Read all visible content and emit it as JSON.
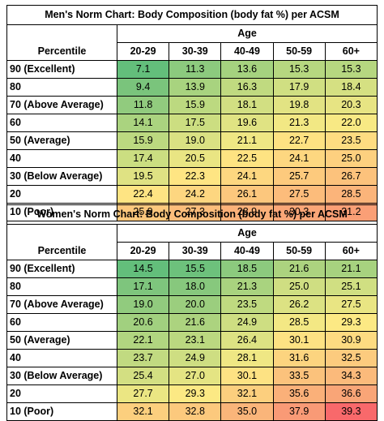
{
  "charts": [
    {
      "id": "men",
      "title": "Men's Norm Chart: Body Composition (body fat %) per ACSM",
      "age_label": "Age",
      "percentile_label": "Percentile",
      "age_groups": [
        "20-29",
        "30-39",
        "40-49",
        "50-59",
        "60+"
      ],
      "rows": [
        {
          "label": "90 (Excellent)",
          "values": [
            "7.1",
            "11.3",
            "13.6",
            "15.3",
            "15.3"
          ],
          "colors": [
            "#63be7b",
            "#8cca7e",
            "#a5d27f",
            "#b6d780",
            "#b6d780"
          ]
        },
        {
          "label": "80",
          "values": [
            "9.4",
            "13.9",
            "16.3",
            "17.9",
            "18.4"
          ],
          "colors": [
            "#7ac47c",
            "#a8d37f",
            "#c0da80",
            "#d0df82",
            "#d5e082"
          ]
        },
        {
          "label": "70 (Above Average)",
          "values": [
            "11.8",
            "15.9",
            "18.1",
            "19.8",
            "20.3"
          ],
          "colors": [
            "#91cb7e",
            "#bcd980",
            "#d2df82",
            "#e2e383",
            "#e7e483"
          ]
        },
        {
          "label": "60",
          "values": [
            "14.1",
            "17.5",
            "19.6",
            "21.3",
            "22.0"
          ],
          "colors": [
            "#aad37f",
            "#ccde81",
            "#e0e383",
            "#f2e884",
            "#f8e984"
          ]
        },
        {
          "label": "50 (Average)",
          "values": [
            "15.9",
            "19.0",
            "21.1",
            "22.7",
            "23.5"
          ],
          "colors": [
            "#bcd980",
            "#dae183",
            "#efe784",
            "#fee282",
            "#fedc81"
          ]
        },
        {
          "label": "40",
          "values": [
            "17.4",
            "20.5",
            "22.5",
            "24.1",
            "25.0"
          ],
          "colors": [
            "#cbde81",
            "#e9e583",
            "#fee382",
            "#fdd780",
            "#fdd07f"
          ]
        },
        {
          "label": "30 (Below Average)",
          "values": [
            "19.5",
            "22.3",
            "24.1",
            "25.7",
            "26.7"
          ],
          "colors": [
            "#dfe283",
            "#fee583",
            "#fdd780",
            "#fdca7d",
            "#fcc27c"
          ]
        },
        {
          "label": "20",
          "values": [
            "22.4",
            "24.2",
            "26.1",
            "27.5",
            "28.5"
          ],
          "colors": [
            "#fee483",
            "#fdd680",
            "#fcc77d",
            "#fcbc7b",
            "#fbb47a"
          ]
        },
        {
          "label": "10 (Poor)",
          "values": [
            "25.9",
            "27.3",
            "28.9",
            "30.3",
            "31.2"
          ],
          "colors": [
            "#fdc87d",
            "#fcbd7b",
            "#fbb179",
            "#faa677",
            "#fa9f76"
          ]
        }
      ]
    },
    {
      "id": "women",
      "title": "Women's Norm Chart: Body Composition (body fat %) per ACSM",
      "age_label": "Age",
      "percentile_label": "Percentile",
      "age_groups": [
        "20-29",
        "30-39",
        "40-49",
        "50-59",
        "60+"
      ],
      "rows": [
        {
          "label": "90 (Excellent)",
          "values": [
            "14.5",
            "15.5",
            "18.5",
            "21.6",
            "21.1"
          ],
          "colors": [
            "#63be7b",
            "#6dc17c",
            "#8cca7e",
            "#acd37f",
            "#a7d27f"
          ]
        },
        {
          "label": "80",
          "values": [
            "17.1",
            "18.0",
            "21.3",
            "25.0",
            "25.1"
          ],
          "colors": [
            "#7ec57d",
            "#87c87d",
            "#a9d37f",
            "#cfde82",
            "#d0df82"
          ]
        },
        {
          "label": "70 (Above Average)",
          "values": [
            "19.0",
            "20.0",
            "23.5",
            "26.2",
            "27.5"
          ],
          "colors": [
            "#91cb7e",
            "#9bce7e",
            "#bfda80",
            "#dce283",
            "#e9e583"
          ]
        },
        {
          "label": "60",
          "values": [
            "20.6",
            "21.6",
            "24.9",
            "28.5",
            "29.3"
          ],
          "colors": [
            "#a1d07f",
            "#acd37f",
            "#cede82",
            "#f3e884",
            "#fce984"
          ]
        },
        {
          "label": "50 (Average)",
          "values": [
            "22.1",
            "23.1",
            "26.4",
            "30.1",
            "30.9"
          ],
          "colors": [
            "#b1d580",
            "#bbd880",
            "#dde283",
            "#fde283",
            "#fddb81"
          ]
        },
        {
          "label": "40",
          "values": [
            "23.7",
            "24.9",
            "28.1",
            "31.6",
            "32.5"
          ],
          "colors": [
            "#c1da81",
            "#cede82",
            "#efe784",
            "#fcd47f",
            "#fccb7e"
          ]
        },
        {
          "label": "30 (Below Average)",
          "values": [
            "25.4",
            "27.0",
            "30.1",
            "33.5",
            "34.3"
          ],
          "colors": [
            "#d3df82",
            "#e4e483",
            "#fde283",
            "#fbc27c",
            "#fbba7b"
          ]
        },
        {
          "label": "20",
          "values": [
            "27.7",
            "29.3",
            "32.1",
            "35.6",
            "36.6"
          ],
          "colors": [
            "#ebe683",
            "#fce984",
            "#fccf7e",
            "#fab079",
            "#f9a577"
          ]
        },
        {
          "label": "10 (Poor)",
          "values": [
            "32.1",
            "32.8",
            "35.0",
            "37.9",
            "39.3"
          ],
          "colors": [
            "#fccf7e",
            "#fcc97d",
            "#fab57a",
            "#f99a76",
            "#f8696b"
          ]
        }
      ]
    }
  ]
}
